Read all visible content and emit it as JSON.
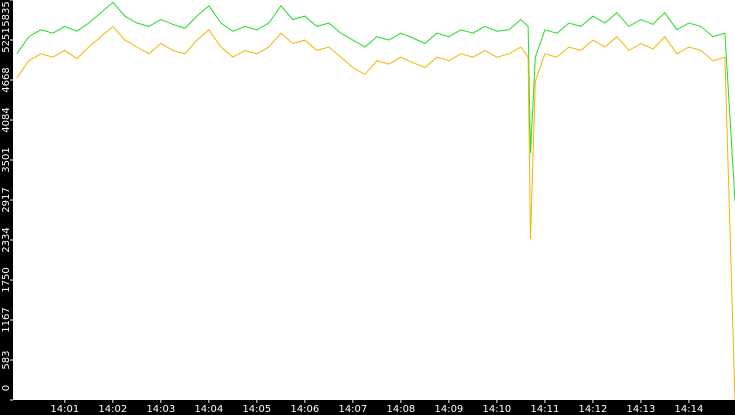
{
  "chart_data": {
    "type": "line",
    "x": [
      0,
      0.25,
      0.5,
      0.75,
      1,
      1.25,
      1.5,
      1.75,
      2,
      2.25,
      2.5,
      2.75,
      3,
      3.25,
      3.5,
      3.75,
      4,
      4.25,
      4.5,
      4.75,
      5,
      5.25,
      5.5,
      5.75,
      6,
      6.25,
      6.5,
      6.75,
      7,
      7.25,
      7.5,
      7.75,
      8,
      8.25,
      8.5,
      8.75,
      9,
      9.25,
      9.5,
      9.75,
      10,
      10.25,
      10.5,
      10.65,
      10.7,
      10.8,
      11,
      11.25,
      11.5,
      11.75,
      12,
      12.25,
      12.5,
      12.75,
      13,
      13.25,
      13.5,
      13.75,
      14,
      14.25,
      14.5,
      14.75,
      14.96
    ],
    "series": [
      {
        "color": "#22dd22",
        "values": [
          5050,
          5300,
          5400,
          5350,
          5450,
          5380,
          5500,
          5650,
          5800,
          5600,
          5500,
          5450,
          5550,
          5480,
          5420,
          5600,
          5750,
          5500,
          5380,
          5450,
          5400,
          5500,
          5750,
          5550,
          5600,
          5450,
          5500,
          5350,
          5250,
          5150,
          5300,
          5250,
          5350,
          5280,
          5200,
          5350,
          5300,
          5400,
          5350,
          5450,
          5380,
          5400,
          5550,
          5450,
          3600,
          5000,
          5400,
          5350,
          5500,
          5450,
          5600,
          5500,
          5650,
          5450,
          5550,
          5480,
          5650,
          5400,
          5500,
          5450,
          5300,
          5350,
          2900
        ]
      },
      {
        "color": "#f5b400",
        "values": [
          4700,
          4950,
          5050,
          5000,
          5100,
          4980,
          5150,
          5300,
          5450,
          5250,
          5150,
          5050,
          5200,
          5100,
          5050,
          5250,
          5400,
          5150,
          5000,
          5100,
          5050,
          5150,
          5350,
          5200,
          5250,
          5100,
          5150,
          5000,
          4850,
          4750,
          4950,
          4900,
          5000,
          4920,
          4850,
          5000,
          4950,
          5050,
          5000,
          5100,
          5000,
          5050,
          5150,
          5000,
          2350,
          4650,
          5050,
          5000,
          5150,
          5100,
          5250,
          5150,
          5300,
          5100,
          5200,
          5120,
          5300,
          5050,
          5150,
          5100,
          4950,
          5000,
          0
        ]
      }
    ],
    "xlim": [
      -0.08,
      14.96
    ],
    "xticks": [
      {
        "value": 1,
        "label": "14:01"
      },
      {
        "value": 2,
        "label": "14:02"
      },
      {
        "value": 3,
        "label": "14:03"
      },
      {
        "value": 4,
        "label": "14:04"
      },
      {
        "value": 5,
        "label": "14:05"
      },
      {
        "value": 6,
        "label": "14:06"
      },
      {
        "value": 7,
        "label": "14:07"
      },
      {
        "value": 8,
        "label": "14:08"
      },
      {
        "value": 9,
        "label": "14:09"
      },
      {
        "value": 10,
        "label": "14:10"
      },
      {
        "value": 11,
        "label": "14:11"
      },
      {
        "value": 12,
        "label": "14:12"
      },
      {
        "value": 13,
        "label": "14:13"
      },
      {
        "value": 14,
        "label": "14:14"
      }
    ],
    "ylim": [
      0,
      5835
    ],
    "yticks": [
      0,
      583,
      1167,
      1750,
      2334,
      2917,
      3501,
      4084,
      4668,
      5251,
      5835
    ]
  }
}
